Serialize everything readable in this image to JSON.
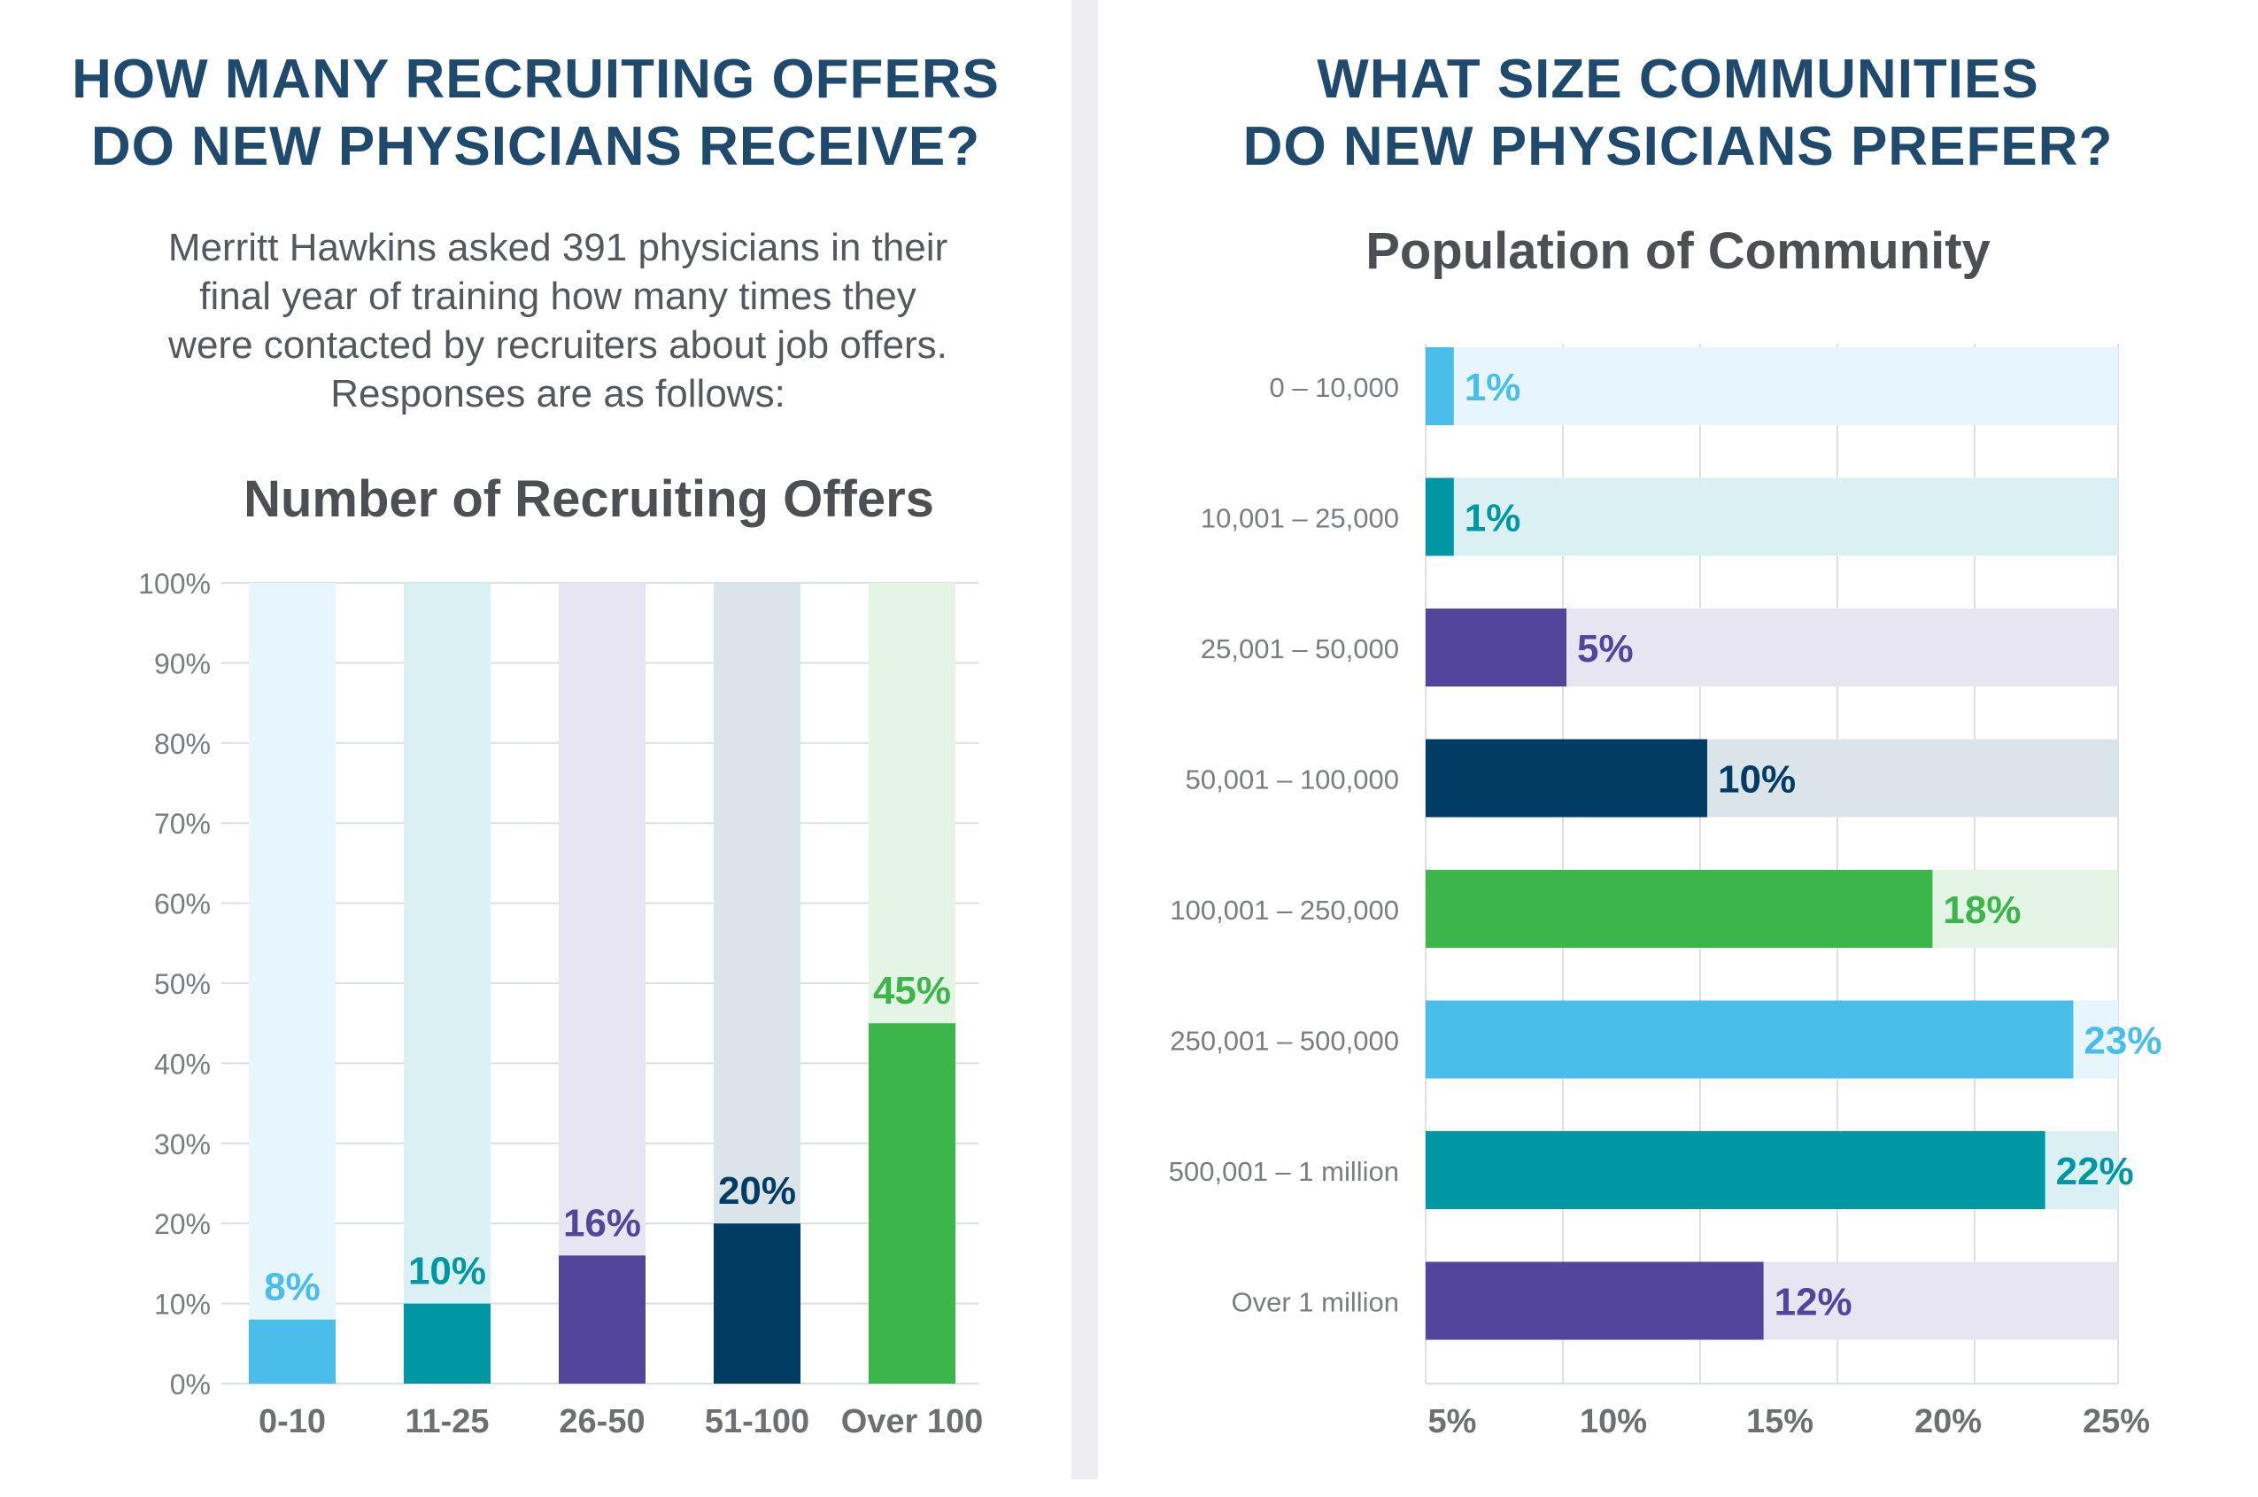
{
  "left": {
    "headline": [
      "HOW MANY RECRUITING OFFERS",
      "DO NEW PHYSICIANS RECEIVE?"
    ],
    "intro": [
      "Merritt Hawkins asked 391 physicians in their",
      "final year of training how many times they",
      "were contacted by recruiters about job offers.",
      "Responses are as follows:"
    ]
  },
  "right": {
    "headline": [
      "WHAT SIZE COMMUNITIES",
      "DO NEW PHYSICIANS PREFER?"
    ]
  },
  "colors": {
    "light_blue": "#4bbdea",
    "teal": "#0097a5",
    "purple": "#53449c",
    "navy": "#003c64",
    "green": "#3cb54a",
    "headline": "#1f4a6e",
    "axis_text": "#7a7d80",
    "grid": "#dcdfe3"
  },
  "chart_data": [
    {
      "type": "bar",
      "title": "Number of Recruiting Offers",
      "categories": [
        "0-10",
        "11-25",
        "26-50",
        "51-100",
        "Over 100"
      ],
      "values": [
        8,
        10,
        16,
        20,
        45
      ],
      "labels": [
        "8%",
        "10%",
        "16%",
        "20%",
        "45%"
      ],
      "colors": [
        "light_blue",
        "teal",
        "purple",
        "navy",
        "green"
      ],
      "ylim": [
        0,
        100
      ],
      "yticks": [
        "0%",
        "10%",
        "20%",
        "30%",
        "40%",
        "50%",
        "60%",
        "70%",
        "80%",
        "90%",
        "100%"
      ],
      "grid": true,
      "xlabel": "",
      "ylabel": ""
    },
    {
      "type": "bar",
      "orientation": "horizontal",
      "title": "Population of Community",
      "categories": [
        "0 – 10,000",
        "10,001 – 25,000",
        "25,001 – 50,000",
        "50,001 – 100,000",
        "100,001 – 250,000",
        "250,001 – 500,000",
        "500,001 – 1 million",
        "Over 1 million"
      ],
      "values": [
        1,
        1,
        5,
        10,
        18,
        23,
        22,
        12
      ],
      "labels": [
        "1%",
        "1%",
        "5%",
        "10%",
        "18%",
        "23%",
        "22%",
        "12%"
      ],
      "colors": [
        "light_blue",
        "teal",
        "purple",
        "navy",
        "green",
        "light_blue",
        "teal",
        "purple"
      ],
      "xticks": [
        "5%",
        "10%",
        "15%",
        "20%",
        "25%"
      ],
      "grid": true,
      "xlabel": "",
      "ylabel": ""
    }
  ]
}
